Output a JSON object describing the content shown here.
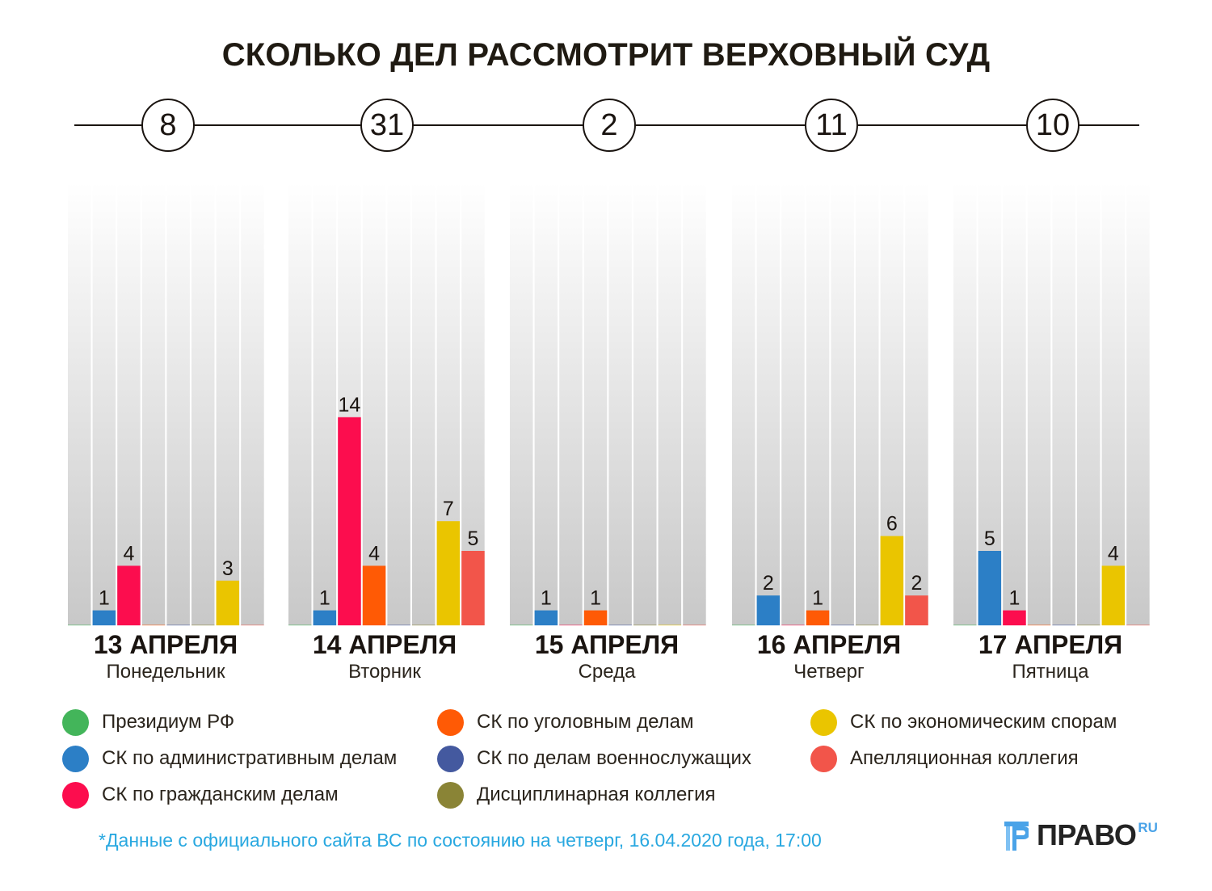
{
  "title": "СКОЛЬКО ДЕЛ РАССМОТРИТ ВЕРХОВНЫЙ СУД",
  "chart_data": {
    "type": "bar",
    "title": "СКОЛЬКО ДЕЛ РАССМОТРИТ ВЕРХОВНЫЙ СУД",
    "xlabel": "",
    "ylabel": "",
    "ylim": [
      0,
      30
    ],
    "grid": false,
    "legend_position": "bottom",
    "categories": [
      "13 АПРЕЛЯ",
      "14 АПРЕЛЯ",
      "15 АПРЕЛЯ",
      "16 АПРЕЛЯ",
      "17 АПРЕЛЯ"
    ],
    "weekdays": [
      "Понедельник",
      "Вторник",
      "Среда",
      "Четверг",
      "Пятница"
    ],
    "totals": [
      8,
      31,
      2,
      11,
      10
    ],
    "series": [
      {
        "name": "Президиум РФ",
        "color": "#43b55a",
        "values": [
          0,
          0,
          0,
          0,
          0
        ]
      },
      {
        "name": "СК по административным делам",
        "color": "#2c7fc6",
        "values": [
          1,
          1,
          1,
          2,
          5
        ]
      },
      {
        "name": "СК по гражданским делам",
        "color": "#fc0d4e",
        "values": [
          4,
          14,
          0,
          0,
          1
        ]
      },
      {
        "name": "СК по уголовным делам",
        "color": "#ff5a05",
        "values": [
          0,
          4,
          1,
          1,
          0
        ]
      },
      {
        "name": "СК по делам военнослужащих",
        "color": "#44599f",
        "values": [
          0,
          0,
          0,
          0,
          0
        ]
      },
      {
        "name": "Дисциплинарная коллегия",
        "color": "#8a8436",
        "values": [
          0,
          0,
          0,
          0,
          0
        ]
      },
      {
        "name": "СК по экономическим спорам",
        "color": "#eac500",
        "values": [
          3,
          7,
          0,
          6,
          4
        ]
      },
      {
        "name": "Апелляционная коллегия",
        "color": "#f2554a",
        "values": [
          0,
          5,
          0,
          2,
          0
        ]
      }
    ]
  },
  "footnote": "*Данные с официального сайта ВС по состоянию на четверг, 16.04.2020 года, 17:00",
  "logo": {
    "text": "ПРАВО",
    "suffix": "RU",
    "icon": "pravo-logo-icon"
  }
}
